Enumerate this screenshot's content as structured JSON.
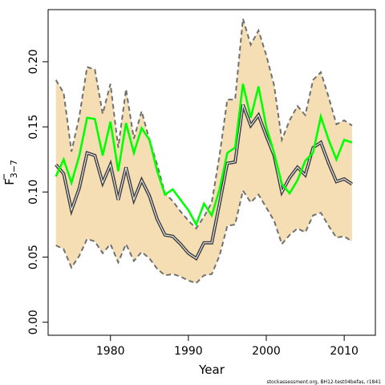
{
  "chart_data": {
    "type": "line",
    "xlabel": "Year",
    "ylabel_main": "F",
    "ylabel_sub": "3−7",
    "xlim": [
      1972,
      2014
    ],
    "ylim": [
      -0.01,
      0.24
    ],
    "x_ticks": [
      1980,
      1990,
      2000,
      2010
    ],
    "y_ticks": [
      0.0,
      0.05,
      0.1,
      0.15,
      0.2
    ],
    "y_tick_labels": [
      "0.00",
      "0.05",
      "0.10",
      "0.15",
      "0.20"
    ],
    "grid": false,
    "x": [
      1973,
      1974,
      1975,
      1976,
      1977,
      1978,
      1979,
      1980,
      1981,
      1982,
      1983,
      1984,
      1985,
      1986,
      1987,
      1988,
      1989,
      1990,
      1991,
      1992,
      1993,
      1994,
      1995,
      1996,
      1997,
      1998,
      1999,
      2000,
      2001,
      2002,
      2003,
      2004,
      2005,
      2006,
      2007,
      2008,
      2009,
      2010,
      2011
    ],
    "series": [
      {
        "role": "upper-bound",
        "color": "#707070",
        "values": [
          0.186,
          0.176,
          0.131,
          0.158,
          0.196,
          0.194,
          0.16,
          0.183,
          0.134,
          0.179,
          0.141,
          0.162,
          0.14,
          0.121,
          0.099,
          0.093,
          0.085,
          0.078,
          0.072,
          0.081,
          0.092,
          0.128,
          0.171,
          0.171,
          0.233,
          0.213,
          0.224,
          0.205,
          0.182,
          0.14,
          0.155,
          0.166,
          0.159,
          0.186,
          0.192,
          0.173,
          0.152,
          0.155,
          0.151
        ]
      },
      {
        "role": "lower-bound",
        "color": "#707070",
        "values": [
          0.059,
          0.056,
          0.042,
          0.051,
          0.064,
          0.062,
          0.053,
          0.06,
          0.046,
          0.06,
          0.047,
          0.054,
          0.049,
          0.041,
          0.036,
          0.037,
          0.035,
          0.032,
          0.03,
          0.036,
          0.037,
          0.051,
          0.074,
          0.075,
          0.101,
          0.092,
          0.098,
          0.088,
          0.078,
          0.06,
          0.067,
          0.072,
          0.069,
          0.082,
          0.084,
          0.074,
          0.065,
          0.066,
          0.062
        ]
      },
      {
        "role": "estimate",
        "color": "#404040",
        "values": [
          0.121,
          0.114,
          0.086,
          0.103,
          0.13,
          0.128,
          0.107,
          0.121,
          0.094,
          0.119,
          0.094,
          0.109,
          0.097,
          0.079,
          0.067,
          0.066,
          0.06,
          0.053,
          0.049,
          0.061,
          0.061,
          0.091,
          0.122,
          0.123,
          0.167,
          0.151,
          0.159,
          0.143,
          0.128,
          0.1,
          0.111,
          0.119,
          0.113,
          0.134,
          0.138,
          0.122,
          0.108,
          0.11,
          0.106
        ]
      },
      {
        "role": "comparison",
        "color": "#00ff00",
        "values": [
          0.112,
          0.125,
          0.107,
          0.128,
          0.157,
          0.156,
          0.128,
          0.154,
          0.116,
          0.153,
          0.13,
          0.149,
          0.14,
          0.116,
          0.098,
          0.102,
          0.094,
          0.086,
          0.075,
          0.091,
          0.082,
          0.102,
          0.13,
          0.134,
          0.183,
          0.157,
          0.181,
          0.15,
          0.13,
          0.106,
          0.099,
          0.109,
          0.124,
          0.13,
          0.158,
          0.14,
          0.125,
          0.14,
          0.138
        ]
      }
    ],
    "band_fill": "#f5deb3"
  },
  "credit": "stockassessment.org, BH12-test04befas, r1841"
}
